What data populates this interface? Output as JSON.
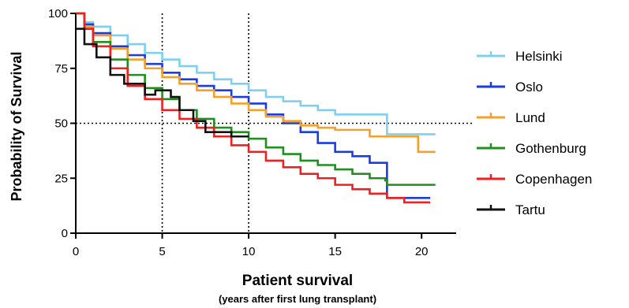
{
  "chart_data": {
    "type": "line",
    "xlabel": "Patient survival",
    "xlabel_sub": "(years after first lung transplant)",
    "ylabel": "Probability of Survival",
    "xlim": [
      0,
      22
    ],
    "ylim": [
      0,
      100
    ],
    "x_ticks": [
      0,
      5,
      10,
      15,
      20
    ],
    "y_ticks": [
      0,
      25,
      50,
      75,
      100
    ],
    "reference_lines": {
      "x": [
        5,
        10
      ],
      "y": [
        50
      ]
    },
    "grid": false,
    "legend_position": "right",
    "series": [
      {
        "name": "Helsinki",
        "color": "#7fd0f0",
        "points": [
          [
            0,
            100
          ],
          [
            0.5,
            96
          ],
          [
            1,
            94
          ],
          [
            2,
            90
          ],
          [
            3,
            86
          ],
          [
            4,
            82
          ],
          [
            5,
            79
          ],
          [
            6,
            76
          ],
          [
            7,
            73
          ],
          [
            8,
            70
          ],
          [
            9,
            68
          ],
          [
            10,
            65
          ],
          [
            11,
            62
          ],
          [
            12,
            60
          ],
          [
            13,
            58
          ],
          [
            14,
            56
          ],
          [
            15,
            54
          ],
          [
            16,
            54
          ],
          [
            17,
            54
          ],
          [
            17.9,
            54
          ],
          [
            18,
            45
          ],
          [
            19,
            45
          ],
          [
            20,
            45
          ],
          [
            20.8,
            45
          ]
        ]
      },
      {
        "name": "Oslo",
        "color": "#1a3de0",
        "points": [
          [
            0,
            100
          ],
          [
            0.5,
            95
          ],
          [
            1,
            91
          ],
          [
            2,
            85
          ],
          [
            3,
            81
          ],
          [
            4,
            77
          ],
          [
            5,
            73
          ],
          [
            6,
            70
          ],
          [
            7,
            67
          ],
          [
            8,
            65
          ],
          [
            9,
            62
          ],
          [
            10,
            59
          ],
          [
            11,
            54
          ],
          [
            12,
            50
          ],
          [
            13,
            46
          ],
          [
            14,
            41
          ],
          [
            15,
            37
          ],
          [
            16,
            35
          ],
          [
            17,
            32
          ],
          [
            17.9,
            32
          ],
          [
            18,
            16
          ],
          [
            19,
            16
          ],
          [
            20,
            16
          ],
          [
            20.5,
            16
          ]
        ]
      },
      {
        "name": "Lund",
        "color": "#f5a02a",
        "points": [
          [
            0,
            100
          ],
          [
            0.5,
            94
          ],
          [
            1,
            90
          ],
          [
            2,
            84
          ],
          [
            3,
            79
          ],
          [
            4,
            75
          ],
          [
            5,
            71
          ],
          [
            6,
            68
          ],
          [
            7,
            65
          ],
          [
            8,
            62
          ],
          [
            9,
            59
          ],
          [
            10,
            56
          ],
          [
            11,
            53
          ],
          [
            12,
            51
          ],
          [
            13,
            49
          ],
          [
            14,
            48
          ],
          [
            15,
            47
          ],
          [
            16,
            47
          ],
          [
            17,
            44
          ],
          [
            18,
            44
          ],
          [
            19,
            44
          ],
          [
            19.7,
            44
          ],
          [
            19.8,
            37
          ],
          [
            20.8,
            37
          ]
        ]
      },
      {
        "name": "Gothenburg",
        "color": "#1f8f1f",
        "points": [
          [
            0,
            100
          ],
          [
            0.5,
            93
          ],
          [
            1,
            87
          ],
          [
            2,
            79
          ],
          [
            3,
            72
          ],
          [
            4,
            66
          ],
          [
            5,
            61
          ],
          [
            6,
            56
          ],
          [
            7,
            52
          ],
          [
            8,
            48
          ],
          [
            9,
            46
          ],
          [
            10,
            43
          ],
          [
            11,
            39
          ],
          [
            12,
            36
          ],
          [
            13,
            33
          ],
          [
            14,
            31
          ],
          [
            15,
            29
          ],
          [
            16,
            27
          ],
          [
            17,
            25
          ],
          [
            17.9,
            24
          ],
          [
            18,
            22
          ],
          [
            19,
            22
          ],
          [
            20,
            22
          ],
          [
            20.8,
            22
          ]
        ]
      },
      {
        "name": "Copenhagen",
        "color": "#f02020",
        "points": [
          [
            0,
            100
          ],
          [
            0.5,
            93
          ],
          [
            1,
            85
          ],
          [
            2,
            75
          ],
          [
            3,
            67
          ],
          [
            4,
            61
          ],
          [
            5,
            56
          ],
          [
            6,
            52
          ],
          [
            7,
            48
          ],
          [
            8,
            44
          ],
          [
            9,
            40
          ],
          [
            10,
            37
          ],
          [
            11,
            33
          ],
          [
            12,
            30
          ],
          [
            13,
            27
          ],
          [
            14,
            25
          ],
          [
            15,
            22
          ],
          [
            16,
            20
          ],
          [
            17,
            18
          ],
          [
            18,
            16
          ],
          [
            19,
            14
          ],
          [
            20,
            14
          ],
          [
            20.5,
            14
          ]
        ]
      },
      {
        "name": "Tartu",
        "color": "#111111",
        "points": [
          [
            0,
            93
          ],
          [
            0.5,
            86
          ],
          [
            1.2,
            86
          ],
          [
            1.2,
            80
          ],
          [
            2,
            80
          ],
          [
            2,
            72
          ],
          [
            2.8,
            72
          ],
          [
            2.8,
            68
          ],
          [
            4,
            68
          ],
          [
            4,
            63
          ],
          [
            4.6,
            63
          ],
          [
            4.6,
            65
          ],
          [
            5.5,
            65
          ],
          [
            5.5,
            62
          ],
          [
            6,
            62
          ],
          [
            6,
            56
          ],
          [
            6.8,
            56
          ],
          [
            6.8,
            51
          ],
          [
            7.5,
            51
          ],
          [
            7.5,
            46
          ],
          [
            9,
            46
          ],
          [
            9,
            44
          ],
          [
            10,
            44
          ]
        ]
      }
    ]
  }
}
